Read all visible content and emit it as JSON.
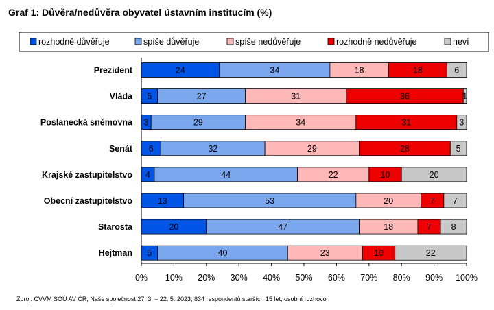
{
  "chart_data": {
    "type": "bar",
    "orientation": "horizontal",
    "stacked": "100%",
    "title": "Graf 1: Důvěra/nedůvěra obyvatel ústavním institucím (%)",
    "categories": [
      "Prezident",
      "Vláda",
      "Poslanecká sněmovna",
      "Senát",
      "Krajské zastupitelstvo",
      "Obecní zastupitelstvo",
      "Starosta",
      "Hejtman"
    ],
    "series": [
      {
        "name": "rozhodně důvěřuje",
        "color": "#0055e6",
        "values": [
          24,
          5,
          3,
          6,
          4,
          13,
          20,
          5
        ]
      },
      {
        "name": "spíše důvěřuje",
        "color": "#7ba7ee",
        "values": [
          34,
          27,
          29,
          32,
          44,
          53,
          47,
          40
        ]
      },
      {
        "name": "spíše nedůvěřuje",
        "color": "#ffb8b8",
        "values": [
          18,
          31,
          34,
          29,
          22,
          20,
          18,
          23
        ]
      },
      {
        "name": "rozhodně nedůvěřuje",
        "color": "#ee0000",
        "values": [
          18,
          36,
          31,
          28,
          10,
          7,
          7,
          10
        ]
      },
      {
        "name": "neví",
        "color": "#c8c8c8",
        "values": [
          6,
          1,
          3,
          5,
          20,
          7,
          8,
          22
        ]
      }
    ],
    "xlim": [
      0,
      100
    ],
    "xticks": [
      "0%",
      "10%",
      "20%",
      "30%",
      "40%",
      "50%",
      "60%",
      "70%",
      "80%",
      "90%",
      "100%"
    ],
    "legend_position": "top",
    "grid": false
  },
  "source": "Zdroj: CVVM SOÚ AV ČR, Naše společnost 27. 3. – 22. 5. 2023, 834 respondentů starších 15 let, osobní rozhovor."
}
